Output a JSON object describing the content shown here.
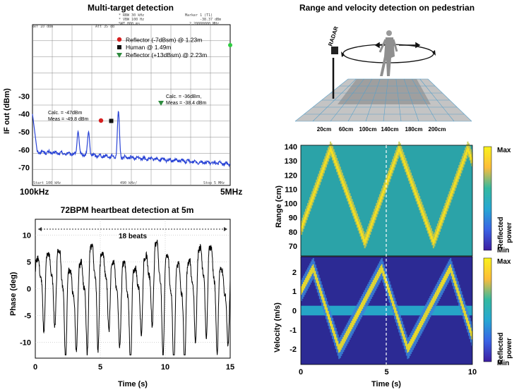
{
  "chart_data": [
    {
      "type": "line",
      "title": "Multi-target detection",
      "ylabel": "IF out (dBm)",
      "x_range_labels": [
        "100kHz",
        "5MHz"
      ],
      "yticks": [
        "-30",
        "-40",
        "-50",
        "-60",
        "-70"
      ],
      "instrument_header": {
        "ref": "Ref  10 dBm",
        "att": "Att  35 dB",
        "rbw": "* RBW 30 kHz",
        "vbw": "* VBW 100 Hz",
        "swt": "SWT  800 ms",
        "marker": "Marker 1 (T1)",
        "marker_val": "-38.37 dBm",
        "marker_freq": "2.20000000 MHz",
        "start": "Start 100 kHz",
        "div": "490 kHz/",
        "stop": "Stop 5 MHz"
      },
      "legend": [
        {
          "label": "Reflector (-7dBsm) @ 1.23m",
          "color": "#d62020",
          "marker": "circle"
        },
        {
          "label": "Human @ 1.49m",
          "color": "#111111",
          "marker": "square"
        },
        {
          "label": "Reflector (+13dBsm) @ 2.23m",
          "color": "#2e8b3e",
          "marker": "triangle"
        }
      ],
      "annotations": [
        {
          "calc": "Calc. = -47dBm",
          "meas": "Meas = -49.8 dBm"
        },
        {
          "calc": "Calc. = -36dBm,",
          "meas": "Meas = -38.4 dBm"
        }
      ],
      "peaks": [
        {
          "x_mhz": 1.23,
          "y_dbm": -49.8
        },
        {
          "x_mhz": 1.49,
          "y_dbm": -50
        },
        {
          "x_mhz": 2.23,
          "y_dbm": -38.4
        }
      ],
      "noise_floor_dbm": [
        -61,
        -68
      ],
      "ylim": [
        -80,
        10
      ],
      "xlim_mhz": [
        0.1,
        5.0
      ],
      "line_color": "#2b45d6"
    },
    {
      "type": "line",
      "title": "72BPM heartbeat detection at 5m",
      "xlabel": "Time (s)",
      "ylabel": "Phase (deg)",
      "xticks": [
        0,
        5,
        10,
        15
      ],
      "yticks": [
        10,
        5,
        0,
        -5,
        -10
      ],
      "xlim": [
        0,
        15
      ],
      "ylim": [
        -13,
        13
      ],
      "beats_label": "18 beats",
      "beats": 18
    },
    {
      "type": "heatmap",
      "title": "Range and velocity detection on pedestrian",
      "radar_label": "RADAR",
      "range_markers": [
        "20cm",
        "60cm",
        "100cm",
        "140cm",
        "180cm",
        "200cm"
      ],
      "range_panel": {
        "ylabel": "Range (cm)",
        "yticks": [
          140,
          130,
          120,
          110,
          100,
          90,
          80,
          70
        ],
        "ylim": [
          63,
          141
        ]
      },
      "velocity_panel": {
        "xlabel": "Time (s)",
        "ylabel": "Velocity (m/s)",
        "yticks": [
          2,
          1,
          0,
          -1,
          -2
        ],
        "ylim": [
          -2.8,
          2.8
        ],
        "xticks": [
          0,
          5,
          10
        ],
        "xlim": [
          0,
          10
        ]
      },
      "colorbar": {
        "max": "Max",
        "min": "Min",
        "label": "Reflected\npower"
      }
    }
  ]
}
